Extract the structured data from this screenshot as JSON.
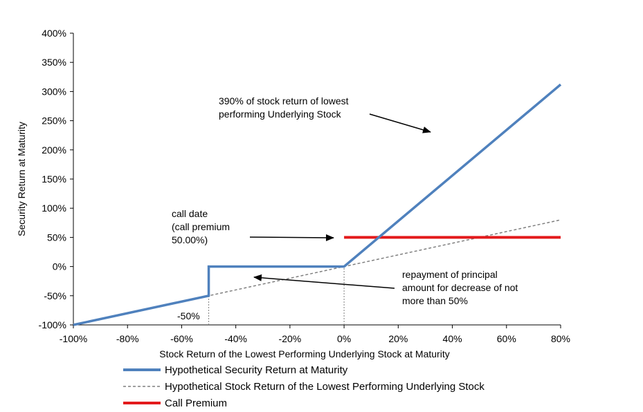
{
  "chart_data": {
    "type": "line",
    "title": "",
    "xlabel": "Stock Return  of the Lowest  Performing Underlying Stock at Maturity",
    "ylabel": "Security Return  at Maturity",
    "xlim": [
      -100,
      80
    ],
    "ylim": [
      -100,
      400
    ],
    "x_ticks": [
      "-100%",
      "-80%",
      "-60%",
      "-40%",
      "-20%",
      "0%",
      "20%",
      "40%",
      "60%",
      "80%"
    ],
    "x_tick_values": [
      -100,
      -80,
      -60,
      -40,
      -20,
      0,
      20,
      40,
      60,
      80
    ],
    "y_ticks": [
      "400%",
      "350%",
      "300%",
      "250%",
      "200%",
      "150%",
      "100%",
      "50%",
      "0%",
      "-50%",
      "-100%"
    ],
    "y_tick_values": [
      400,
      350,
      300,
      250,
      200,
      150,
      100,
      50,
      0,
      -50,
      -100
    ],
    "grid": false,
    "legend_position": "bottom",
    "series": [
      {
        "name": "Hypothetical Security Return at Maturity",
        "color": "#4f81bd",
        "style": "solid",
        "x": [
          -100,
          -50,
          -50,
          0,
          80
        ],
        "y": [
          -100,
          -50,
          0,
          0,
          312
        ]
      },
      {
        "name": "Hypothetical Stock Return of the Lowest Performing Underlying Stock",
        "color": "#7f7f7f",
        "style": "dashed",
        "x": [
          -100,
          80
        ],
        "y": [
          -100,
          80
        ]
      },
      {
        "name": "Call Premium",
        "color": "#e31a1c",
        "style": "solid",
        "x": [
          0,
          80
        ],
        "y": [
          50,
          50
        ]
      }
    ],
    "reference_lines": [
      {
        "x": -50,
        "y_from": -100,
        "y_to": -50
      },
      {
        "x": 0,
        "y_from": -100,
        "y_to": 0
      }
    ],
    "annotations": {
      "leverage": [
        "390% of stock return of lowest",
        "performing Underlying Stock"
      ],
      "call_date": [
        "call date",
        "(call premium",
        "50.00%)"
      ],
      "repayment": [
        "repayment of principal",
        "amount for decrease of not",
        "more than 50%"
      ],
      "barrier": "-50%"
    }
  }
}
